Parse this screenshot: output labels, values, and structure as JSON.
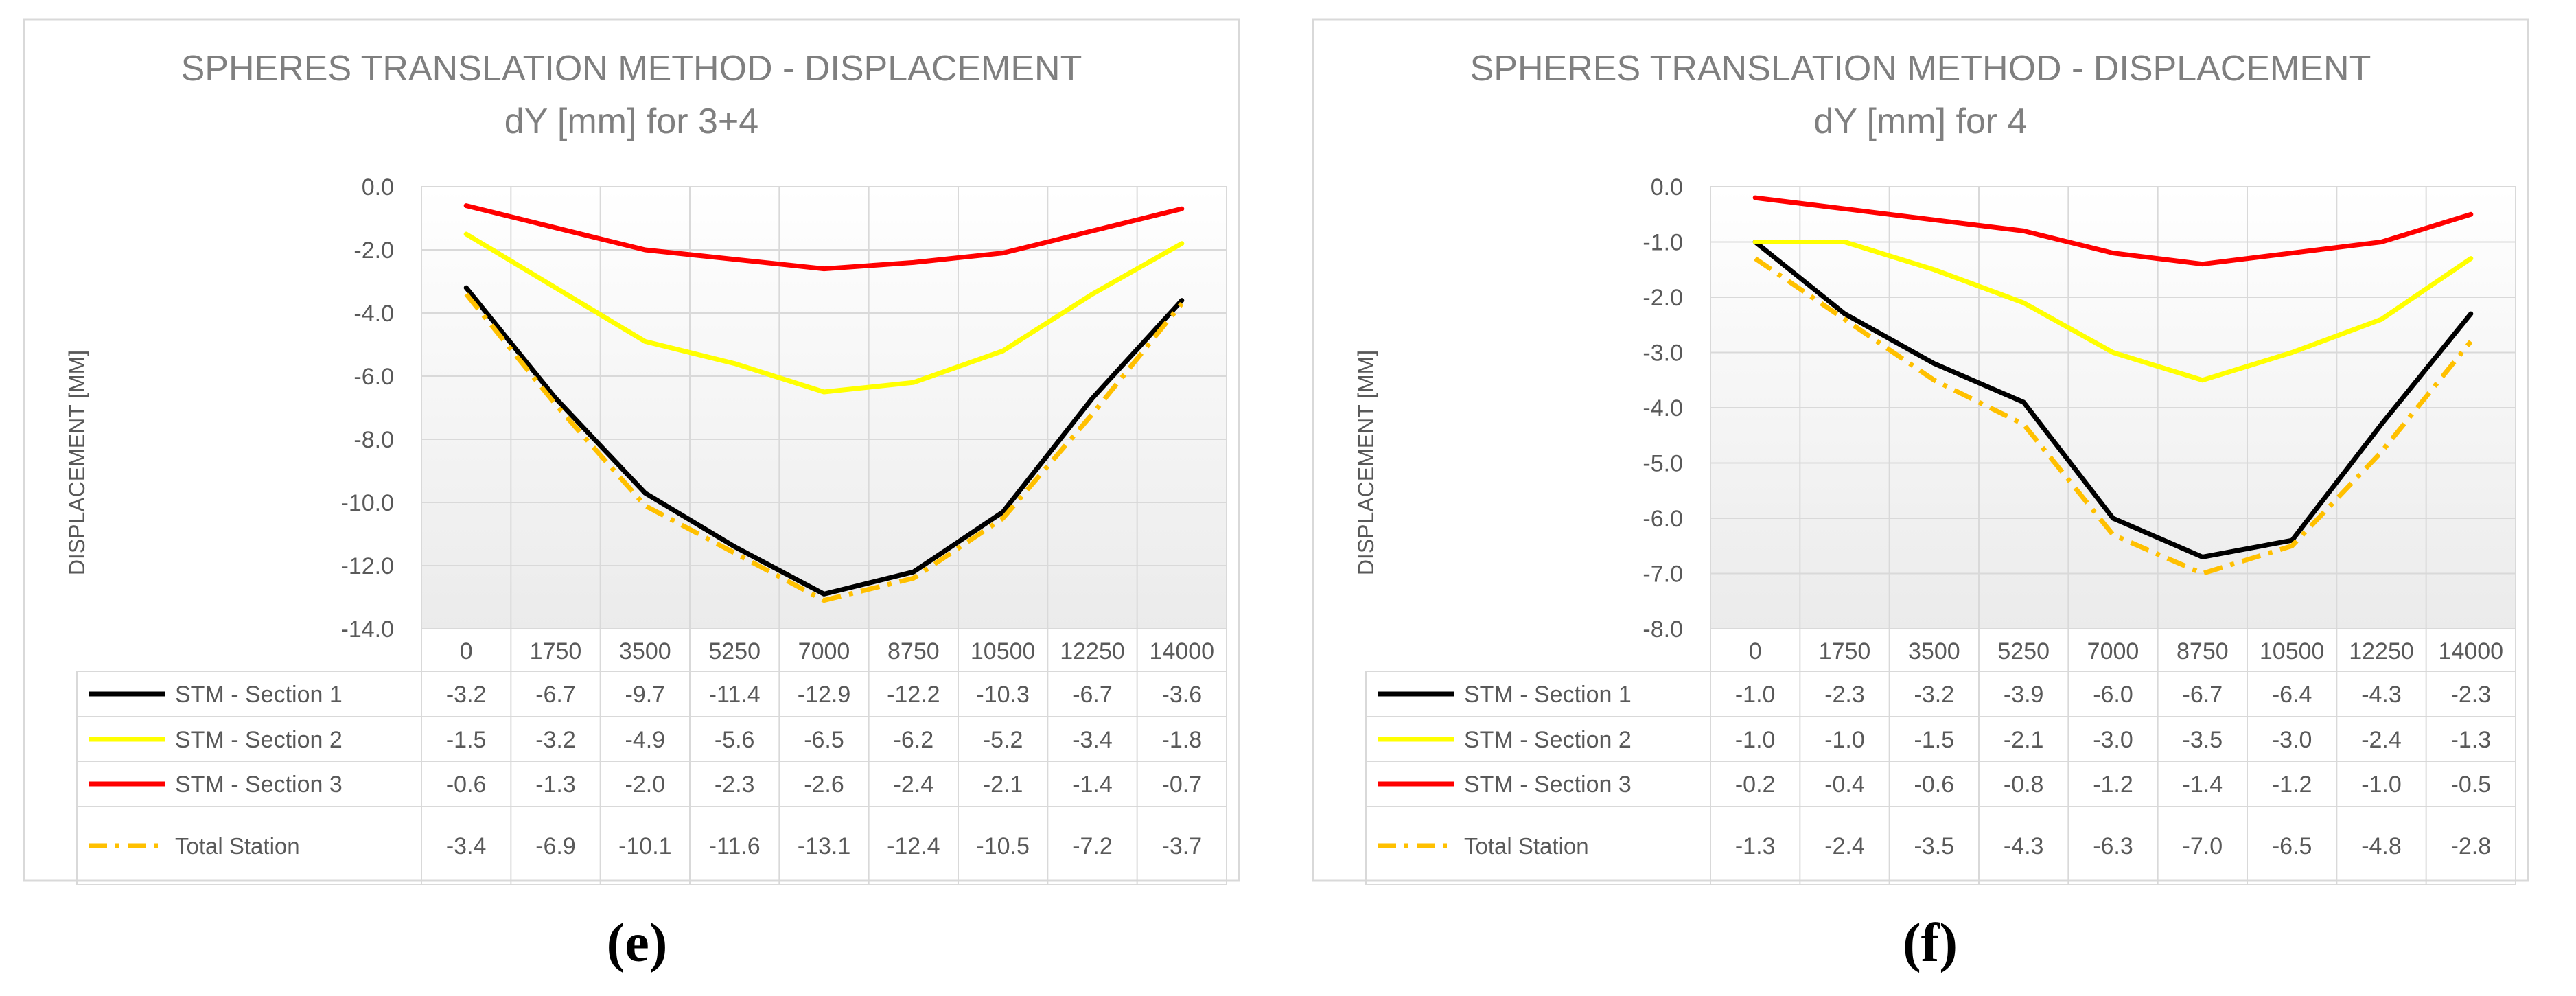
{
  "chart_data": [
    {
      "type": "line",
      "title": "SPHERES TRANSLATION METHOD - DISPLACEMENT",
      "subtitle": "dY [mm] for 3+4",
      "ylabel": "DISPLACEMENT [MM]",
      "ylim": [
        -14.0,
        0.0
      ],
      "ytick_step": 2.0,
      "yticks": [
        "0.0",
        "-2.0",
        "-4.0",
        "-6.0",
        "-8.0",
        "-10.0",
        "-12.0",
        "-14.0"
      ],
      "categories": [
        "0",
        "1750",
        "3500",
        "5250",
        "7000",
        "8750",
        "10500",
        "12250",
        "14000"
      ],
      "caption": "(e)",
      "series": [
        {
          "name": "STM - Section 1",
          "color": "#000000",
          "dash": "solid",
          "values": [
            -3.2,
            -6.7,
            -9.7,
            -11.4,
            -12.9,
            -12.2,
            -10.3,
            -6.7,
            -3.6
          ],
          "labels": [
            "-3.2",
            "-6.7",
            "-9.7",
            "-11.4",
            "-12.9",
            "-12.2",
            "-10.3",
            "-6.7",
            "-3.6"
          ]
        },
        {
          "name": "STM - Section 2",
          "color": "#FFFF00",
          "dash": "solid",
          "values": [
            -1.5,
            -3.2,
            -4.9,
            -5.6,
            -6.5,
            -6.2,
            -5.2,
            -3.4,
            -1.8
          ],
          "labels": [
            "-1.5",
            "-3.2",
            "-4.9",
            "-5.6",
            "-6.5",
            "-6.2",
            "-5.2",
            "-3.4",
            "-1.8"
          ]
        },
        {
          "name": "STM - Section 3",
          "color": "#FF0000",
          "dash": "solid",
          "values": [
            -0.6,
            -1.3,
            -2.0,
            -2.3,
            -2.6,
            -2.4,
            -2.1,
            -1.4,
            -0.7
          ],
          "labels": [
            "-0.6",
            "-1.3",
            "-2.0",
            "-2.3",
            "-2.6",
            "-2.4",
            "-2.1",
            "-1.4",
            "-0.7"
          ]
        },
        {
          "name": "Total Station",
          "color": "#FFC000",
          "dash": "dashdot",
          "values": [
            -3.4,
            -6.9,
            -10.1,
            -11.6,
            -13.1,
            -12.4,
            -10.5,
            -7.2,
            -3.7
          ],
          "labels": [
            "-3.4",
            "-6.9",
            "-10.1",
            "-11.6",
            "-13.1",
            "-12.4",
            "-10.5",
            "-7.2",
            "-3.7"
          ]
        }
      ]
    },
    {
      "type": "line",
      "title": "SPHERES TRANSLATION METHOD - DISPLACEMENT",
      "subtitle": "dY [mm] for 4",
      "ylabel": "DISPLACEMENT [MM]",
      "ylim": [
        -8.0,
        0.0
      ],
      "ytick_step": 1.0,
      "yticks": [
        "0.0",
        "-1.0",
        "-2.0",
        "-3.0",
        "-4.0",
        "-5.0",
        "-6.0",
        "-7.0",
        "-8.0"
      ],
      "categories": [
        "0",
        "1750",
        "3500",
        "5250",
        "7000",
        "8750",
        "10500",
        "12250",
        "14000"
      ],
      "caption": "(f)",
      "series": [
        {
          "name": "STM - Section 1",
          "color": "#000000",
          "dash": "solid",
          "values": [
            -1.0,
            -2.3,
            -3.2,
            -3.9,
            -6.0,
            -6.7,
            -6.4,
            -4.3,
            -2.3
          ],
          "labels": [
            "-1.0",
            "-2.3",
            "-3.2",
            "-3.9",
            "-6.0",
            "-6.7",
            "-6.4",
            "-4.3",
            "-2.3"
          ]
        },
        {
          "name": "STM - Section 2",
          "color": "#FFFF00",
          "dash": "solid",
          "values": [
            -1.0,
            -1.0,
            -1.5,
            -2.1,
            -3.0,
            -3.5,
            -3.0,
            -2.4,
            -1.3
          ],
          "labels": [
            "-1.0",
            "-1.0",
            "-1.5",
            "-2.1",
            "-3.0",
            "-3.5",
            "-3.0",
            "-2.4",
            "-1.3"
          ]
        },
        {
          "name": "STM - Section 3",
          "color": "#FF0000",
          "dash": "solid",
          "values": [
            -0.2,
            -0.4,
            -0.6,
            -0.8,
            -1.2,
            -1.4,
            -1.2,
            -1.0,
            -0.5
          ],
          "labels": [
            "-0.2",
            "-0.4",
            "-0.6",
            "-0.8",
            "-1.2",
            "-1.4",
            "-1.2",
            "-1.0",
            "-0.5"
          ]
        },
        {
          "name": "Total Station",
          "color": "#FFC000",
          "dash": "dashdot",
          "values": [
            -1.3,
            -2.4,
            -3.5,
            -4.3,
            -6.3,
            -7.0,
            -6.5,
            -4.8,
            -2.8
          ],
          "labels": [
            "-1.3",
            "-2.4",
            "-3.5",
            "-4.3",
            "-6.3",
            "-7.0",
            "-6.5",
            "-4.8",
            "-2.8"
          ]
        }
      ]
    }
  ]
}
